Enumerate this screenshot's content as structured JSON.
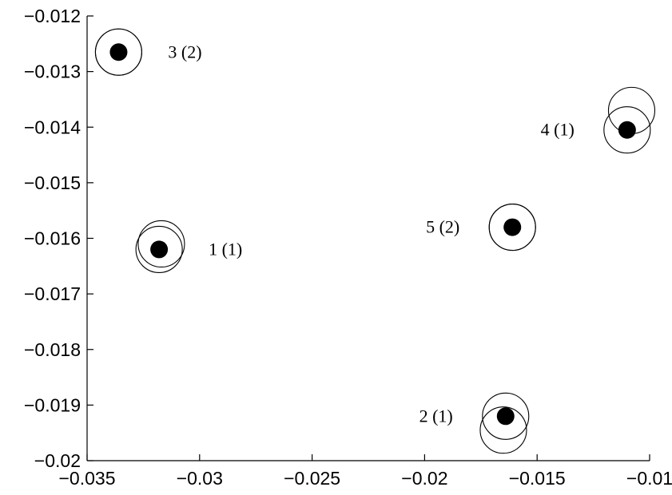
{
  "chart_data": {
    "type": "scatter",
    "title": "",
    "xlabel": "",
    "ylabel": "",
    "xlim": [
      -0.035,
      -0.01
    ],
    "ylim": [
      -0.02,
      -0.012
    ],
    "grid": false,
    "x_ticks": [
      -0.035,
      -0.03,
      -0.025,
      -0.02,
      -0.015,
      -0.01
    ],
    "x_tick_labels": [
      "−0.035",
      "−0.03",
      "−0.025",
      "−0.02",
      "−0.015",
      "−0.01"
    ],
    "y_ticks": [
      -0.012,
      -0.013,
      -0.014,
      -0.015,
      -0.016,
      -0.017,
      -0.018,
      -0.019,
      -0.02
    ],
    "y_tick_labels": [
      "−0.012",
      "−0.013",
      "−0.014",
      "−0.015",
      "−0.016",
      "−0.017",
      "−0.018",
      "−0.019",
      "−0.02"
    ],
    "points": [
      {
        "label": "1 (1)",
        "x": -0.0318,
        "y": -0.0162,
        "label_side": "right",
        "rings": [
          {
            "x": -0.0317,
            "y": -0.0161
          },
          {
            "x": -0.0318,
            "y": -0.0162
          }
        ]
      },
      {
        "label": "2 (1)",
        "x": -0.0164,
        "y": -0.0192,
        "label_side": "left",
        "rings": [
          {
            "x": -0.0164,
            "y": -0.0192
          },
          {
            "x": -0.0165,
            "y": -0.01945
          }
        ]
      },
      {
        "label": "3 (2)",
        "x": -0.0336,
        "y": -0.01265,
        "label_side": "right",
        "rings": [
          {
            "x": -0.0336,
            "y": -0.01265
          },
          {
            "x": -0.0336,
            "y": -0.01265
          }
        ]
      },
      {
        "label": "4 (1)",
        "x": -0.011,
        "y": -0.01405,
        "label_side": "left",
        "rings": [
          {
            "x": -0.0108,
            "y": -0.0137
          },
          {
            "x": -0.011,
            "y": -0.01405
          }
        ]
      },
      {
        "label": "5 (2)",
        "x": -0.0161,
        "y": -0.0158,
        "label_side": "left",
        "rings": [
          {
            "x": -0.0161,
            "y": -0.0158
          },
          {
            "x": -0.0161,
            "y": -0.0158
          }
        ]
      }
    ]
  }
}
